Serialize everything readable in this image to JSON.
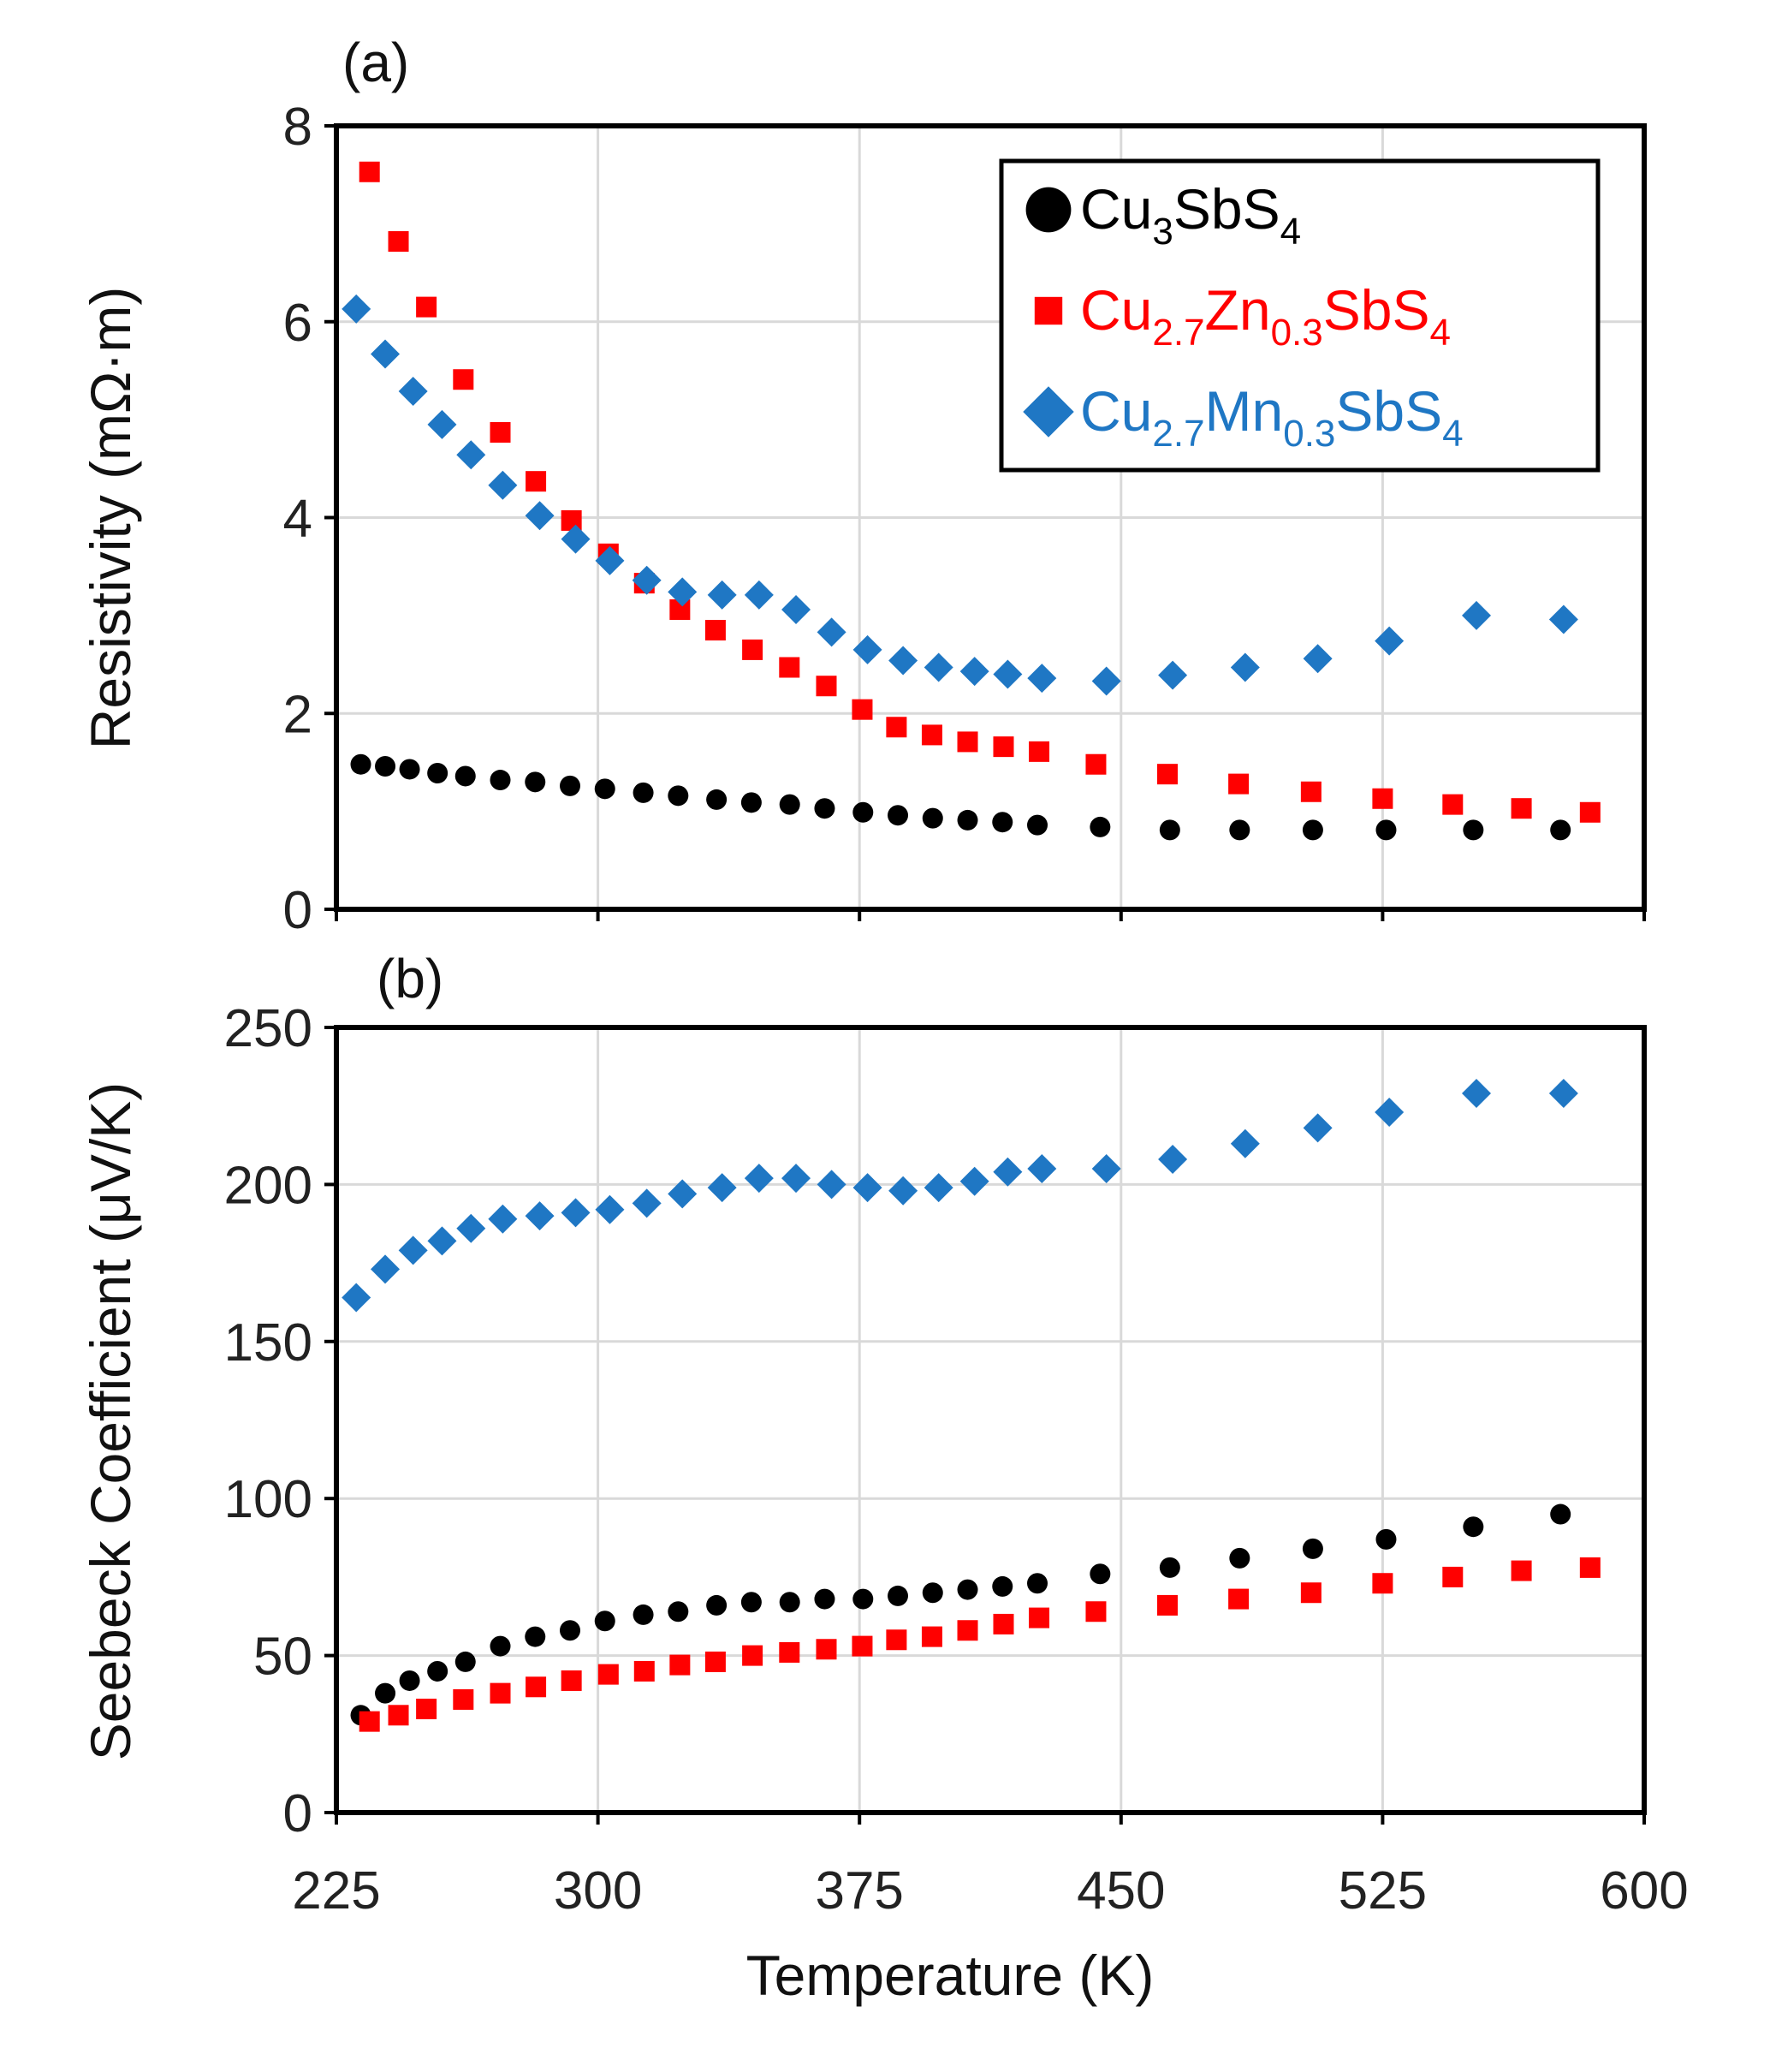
{
  "chart_data": [
    {
      "type": "scatter",
      "panel_label": "(a)",
      "xlabel": "",
      "ylabel": "Resistivity (mΩ·m)",
      "xlim": [
        225,
        600
      ],
      "ylim": [
        0,
        8
      ],
      "yticks": [
        "0",
        "2",
        "4",
        "6",
        "8"
      ],
      "yticks_values": [
        0,
        2,
        4,
        6,
        8
      ],
      "grid": true,
      "legend_position": "top-right",
      "legend": [
        {
          "parts": [
            {
              "t": "Cu"
            },
            {
              "t": "3",
              "sub": true
            },
            {
              "t": "SbS"
            },
            {
              "t": "4",
              "sub": true
            }
          ],
          "color": "#000000",
          "marker": "circle"
        },
        {
          "parts": [
            {
              "t": "Cu"
            },
            {
              "t": "2.7",
              "sub": true
            },
            {
              "t": "Zn"
            },
            {
              "t": "0.3",
              "sub": true
            },
            {
              "t": "SbS"
            },
            {
              "t": "4",
              "sub": true
            }
          ],
          "color": "#ff0000",
          "marker": "square"
        },
        {
          "parts": [
            {
              "t": "Cu"
            },
            {
              "t": "2.7",
              "sub": true
            },
            {
              "t": "Mn"
            },
            {
              "t": "0.3",
              "sub": true
            },
            {
              "t": "SbS"
            },
            {
              "t": "4",
              "sub": true
            }
          ],
          "color": "#1f77c4",
          "marker": "diamond"
        }
      ],
      "series": [
        {
          "name": "Cu3SbS4",
          "color": "#000000",
          "marker": "circle",
          "x": [
            232,
            239,
            246,
            254,
            262,
            272,
            282,
            292,
            302,
            313,
            323,
            334,
            344,
            355,
            365,
            376,
            386,
            396,
            406,
            416,
            426,
            444,
            464,
            484,
            505,
            526,
            551,
            576
          ],
          "y": [
            1.48,
            1.46,
            1.43,
            1.39,
            1.36,
            1.32,
            1.3,
            1.26,
            1.23,
            1.19,
            1.16,
            1.12,
            1.09,
            1.07,
            1.03,
            0.99,
            0.96,
            0.93,
            0.91,
            0.89,
            0.86,
            0.84,
            0.81,
            0.81,
            0.81,
            0.81,
            0.81,
            0.81
          ]
        },
        {
          "name": "Cu2.7Zn0.3SbS4",
          "color": "#ff0000",
          "marker": "square",
          "x": [
            234.5,
            242.8,
            250.8,
            261.4,
            272,
            282.2,
            292.4,
            303,
            313.3,
            323.5,
            333.7,
            344.3,
            354.9,
            365.5,
            375.8,
            385.6,
            395.8,
            406,
            416.3,
            426.5,
            442.8,
            463.3,
            483.7,
            504.5,
            525,
            545.1,
            564.8,
            584.5
          ],
          "y": [
            7.53,
            6.82,
            6.15,
            5.41,
            4.87,
            4.37,
            3.97,
            3.63,
            3.33,
            3.06,
            2.85,
            2.65,
            2.47,
            2.28,
            2.04,
            1.86,
            1.78,
            1.71,
            1.66,
            1.61,
            1.48,
            1.38,
            1.28,
            1.2,
            1.13,
            1.07,
            1.03,
            0.99
          ]
        },
        {
          "name": "Cu2.7Mn0.3SbS4",
          "color": "#1f77c4",
          "marker": "diamond",
          "x": [
            230.7,
            239,
            247,
            255.3,
            263.6,
            272.7,
            283.3,
            293.6,
            303.4,
            314,
            324.2,
            335.6,
            346.2,
            356.8,
            367,
            377.3,
            387.5,
            397.7,
            408,
            417.5,
            427.3,
            445.8,
            464.8,
            485.6,
            506.4,
            526.9,
            551.9,
            576.9
          ],
          "y": [
            6.13,
            5.67,
            5.29,
            4.95,
            4.64,
            4.33,
            4.02,
            3.78,
            3.56,
            3.36,
            3.24,
            3.21,
            3.21,
            3.06,
            2.83,
            2.65,
            2.54,
            2.47,
            2.43,
            2.4,
            2.36,
            2.33,
            2.39,
            2.47,
            2.56,
            2.74,
            3.0,
            2.96
          ]
        }
      ]
    },
    {
      "type": "scatter",
      "panel_label": "(b)",
      "xlabel": "Temperature (K)",
      "ylabel": "Seebeck Coefficient (μV/K)",
      "xlim": [
        225,
        600
      ],
      "ylim": [
        0,
        250
      ],
      "xticks": [
        "225",
        "300",
        "375",
        "450",
        "525",
        "600"
      ],
      "xticks_values": [
        225,
        300,
        375,
        450,
        525,
        600
      ],
      "yticks": [
        "0",
        "50",
        "100",
        "150",
        "200",
        "250"
      ],
      "yticks_values": [
        0,
        50,
        100,
        150,
        200,
        250
      ],
      "grid": true,
      "series": [
        {
          "name": "Cu3SbS4",
          "color": "#000000",
          "marker": "circle",
          "x": [
            232,
            239,
            246,
            254,
            262,
            272,
            282,
            292,
            302,
            313,
            323,
            334,
            344,
            355,
            365,
            376,
            386,
            396,
            406,
            416,
            426,
            444,
            464,
            484,
            505,
            526,
            551,
            576
          ],
          "y": [
            31,
            38,
            42,
            45,
            48,
            53,
            56,
            58,
            61,
            63,
            64,
            66,
            67,
            67,
            68,
            68,
            69,
            70,
            71,
            72,
            73,
            76,
            78,
            81,
            84,
            87,
            91,
            95
          ]
        },
        {
          "name": "Cu2.7Zn0.3SbS4",
          "color": "#ff0000",
          "marker": "square",
          "x": [
            234.5,
            242.8,
            250.8,
            261.4,
            272,
            282.2,
            292.4,
            303,
            313.3,
            323.5,
            333.7,
            344.3,
            354.9,
            365.5,
            375.8,
            385.6,
            395.8,
            406,
            416.3,
            426.5,
            442.8,
            463.3,
            483.7,
            504.5,
            525,
            545.1,
            564.8,
            584.5
          ],
          "y": [
            29,
            31,
            33,
            36,
            38,
            40,
            42,
            44,
            45,
            47,
            48,
            50,
            51,
            52,
            53,
            55,
            56,
            58,
            60,
            62,
            64,
            66,
            68,
            70,
            73,
            75,
            77,
            78
          ]
        },
        {
          "name": "Cu2.7Mn0.3SbS4",
          "color": "#1f77c4",
          "marker": "diamond",
          "x": [
            230.7,
            239,
            247,
            255.3,
            263.6,
            272.7,
            283.3,
            293.6,
            303.4,
            314,
            324.2,
            335.6,
            346.2,
            356.8,
            367,
            377.3,
            387.5,
            397.7,
            408,
            417.5,
            427.3,
            445.8,
            464.8,
            485.6,
            506.4,
            526.9,
            551.9,
            576.9
          ],
          "y": [
            164,
            173,
            179,
            182,
            186,
            189,
            190,
            191,
            192,
            194,
            197,
            199,
            202,
            202,
            200,
            199,
            198,
            199,
            201,
            204,
            205,
            205,
            208,
            213,
            218,
            223,
            229,
            229
          ]
        }
      ]
    }
  ]
}
